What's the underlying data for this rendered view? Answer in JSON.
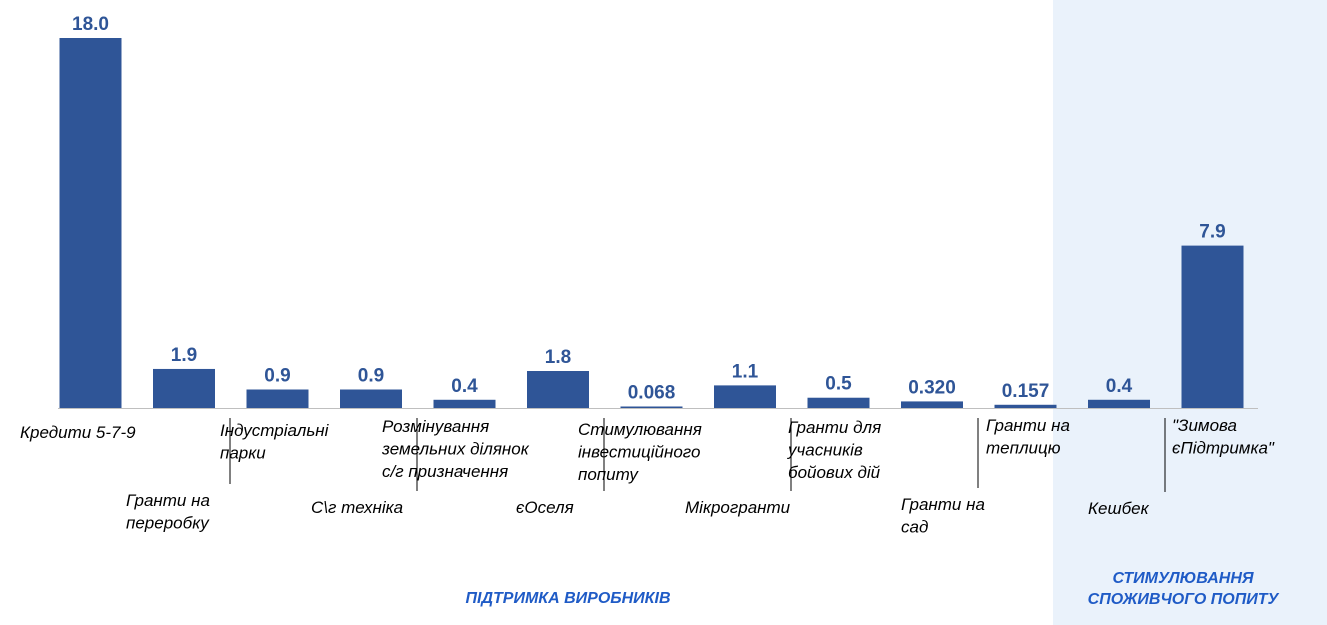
{
  "colors": {
    "bar": "#2F5597",
    "value_label": "#2F5597",
    "group_label": "#1F5BC6",
    "highlight_bg": "#EAF2FB",
    "axis": "#BFBFBF",
    "leader": "#000000"
  },
  "chart_data": {
    "type": "bar",
    "title": "",
    "xlabel": "",
    "ylabel": "",
    "ylim": [
      0,
      18
    ],
    "grid": false,
    "legend": "none",
    "categories": [
      "Кредити 5-7-9",
      "Гранти на\nпереробку",
      "Індустріальні\nпарки",
      "С\\г техніка",
      "Розмінування\nземельних ділянок\nс/г призначення",
      "єОселя",
      "Стимулювання\nінвестиційного\nпопиту",
      "Мікрогранти",
      "Гранти для\nучасників\nбойових дій",
      "Гранти на\nсад",
      "Гранти на\nтеплицю",
      "Кешбек",
      "\"Зимова\nєПідтримка\""
    ],
    "values": [
      18.0,
      1.9,
      0.9,
      0.9,
      0.4,
      1.8,
      0.068,
      1.1,
      0.5,
      0.32,
      0.157,
      0.4,
      7.9
    ],
    "data_labels": [
      "18.0",
      "1.9",
      "0.9",
      "0.9",
      "0.4",
      "1.8",
      "0.068",
      "1.1",
      "0.5",
      "0.320",
      "0.157",
      "0.4",
      "7.9"
    ],
    "groups": [
      {
        "label": "ПІДТРИМКА ВИРОБНИКІВ",
        "start": 0,
        "end": 10,
        "highlight": false
      },
      {
        "label": "СТИМУЛЮВАННЯ\nСПОЖИВЧОГО ПОПИТУ",
        "start": 11,
        "end": 12,
        "highlight": true
      }
    ]
  }
}
